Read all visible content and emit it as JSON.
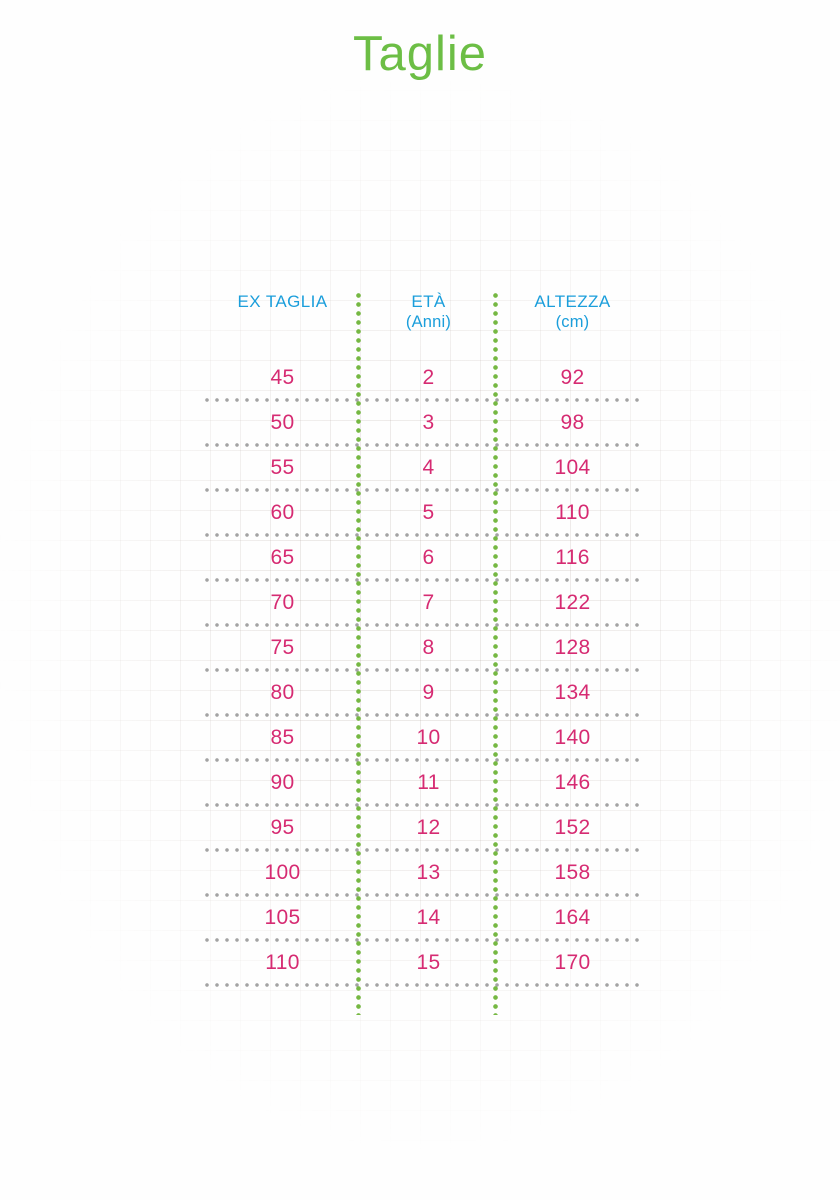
{
  "page": {
    "title": "Taglie"
  },
  "table": {
    "headers": [
      {
        "line1": "EX TAGLIA",
        "line2": ""
      },
      {
        "line1": "ETÀ",
        "line2": "(Anni)"
      },
      {
        "line1": "ALTEZZA",
        "line2": "(cm)"
      }
    ],
    "rows": [
      {
        "ex_taglia": "45",
        "eta": "2",
        "altezza": "92"
      },
      {
        "ex_taglia": "50",
        "eta": "3",
        "altezza": "98"
      },
      {
        "ex_taglia": "55",
        "eta": "4",
        "altezza": "104"
      },
      {
        "ex_taglia": "60",
        "eta": "5",
        "altezza": "110"
      },
      {
        "ex_taglia": "65",
        "eta": "6",
        "altezza": "116"
      },
      {
        "ex_taglia": "70",
        "eta": "7",
        "altezza": "122"
      },
      {
        "ex_taglia": "75",
        "eta": "8",
        "altezza": "128"
      },
      {
        "ex_taglia": "80",
        "eta": "9",
        "altezza": "134"
      },
      {
        "ex_taglia": "85",
        "eta": "10",
        "altezza": "140"
      },
      {
        "ex_taglia": "90",
        "eta": "11",
        "altezza": "146"
      },
      {
        "ex_taglia": "95",
        "eta": "12",
        "altezza": "152"
      },
      {
        "ex_taglia": "100",
        "eta": "13",
        "altezza": "158"
      },
      {
        "ex_taglia": "105",
        "eta": "14",
        "altezza": "164"
      },
      {
        "ex_taglia": "110",
        "eta": "15",
        "altezza": "170"
      }
    ]
  },
  "colors": {
    "title_green": "#6cbe45",
    "divider_green": "#76b843",
    "header_blue": "#1b9edb",
    "row_pink": "#d62b72",
    "separator_gray": "#a3a3a3"
  }
}
